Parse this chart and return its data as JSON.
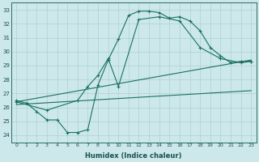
{
  "xlabel": "Humidex (Indice chaleur)",
  "xlim": [
    -0.5,
    23.5
  ],
  "ylim": [
    23.5,
    33.5
  ],
  "yticks": [
    24,
    25,
    26,
    27,
    28,
    29,
    30,
    31,
    32,
    33
  ],
  "xticks": [
    0,
    1,
    2,
    3,
    4,
    5,
    6,
    7,
    8,
    9,
    10,
    11,
    12,
    13,
    14,
    15,
    16,
    17,
    18,
    19,
    20,
    21,
    22,
    23
  ],
  "bg_color": "#cce8ea",
  "grid_color": "#b0d0d2",
  "line_color": "#1a7060",
  "curve1_x": [
    0,
    1,
    2,
    3,
    4,
    5,
    6,
    7,
    8,
    9,
    10,
    11,
    12,
    13,
    14,
    15,
    16,
    17,
    18,
    19,
    20,
    21,
    22,
    23
  ],
  "curve1_y": [
    26.5,
    26.3,
    25.7,
    25.1,
    25.1,
    24.2,
    24.2,
    24.4,
    27.6,
    29.4,
    30.9,
    32.6,
    32.9,
    32.9,
    32.8,
    32.4,
    32.5,
    32.2,
    31.5,
    30.3,
    29.7,
    29.2,
    29.3,
    29.3
  ],
  "curve2_x": [
    0,
    3,
    6,
    7,
    8,
    9,
    10,
    12,
    14,
    16,
    18,
    20,
    22,
    23
  ],
  "curve2_y": [
    26.4,
    25.8,
    26.5,
    27.5,
    28.3,
    29.5,
    27.5,
    32.3,
    32.5,
    32.2,
    30.3,
    29.5,
    29.2,
    29.3
  ],
  "line3_x": [
    0,
    23
  ],
  "line3_y": [
    26.4,
    29.4
  ],
  "line4_x": [
    0,
    23
  ],
  "line4_y": [
    26.2,
    27.2
  ]
}
